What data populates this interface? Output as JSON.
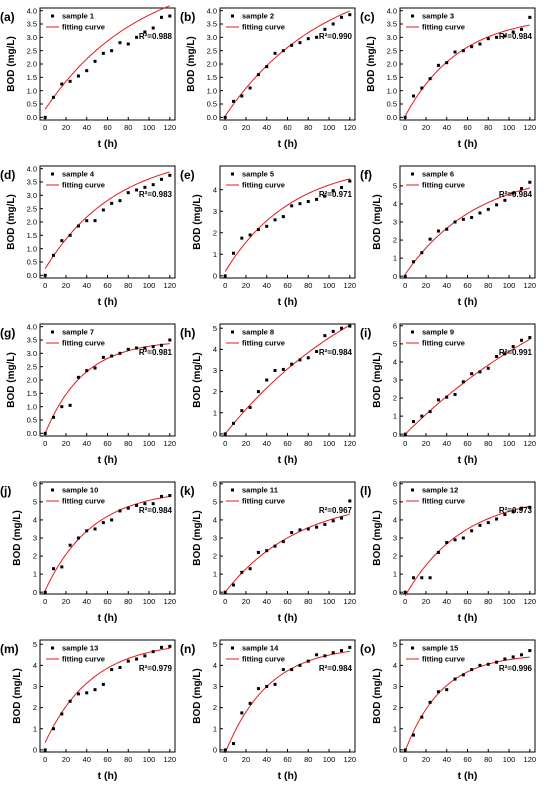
{
  "figure": {
    "xlabel": "t (h)",
    "ylabel": "BOD (mg/L)",
    "legend_points": "sample",
    "legend_curve": "fitting curve",
    "colors": {
      "points": "#000000",
      "curve": "#e31a1c",
      "axis": "#000000"
    }
  },
  "chart_data": [
    {
      "type": "scatter",
      "panel": "(a)",
      "series_name": "sample 1",
      "r2": "R²=0.988",
      "x": [
        0,
        8,
        16,
        24,
        32,
        40,
        48,
        56,
        64,
        72,
        80,
        88,
        96,
        104,
        112,
        120
      ],
      "y": [
        0.0,
        0.75,
        1.25,
        1.35,
        1.55,
        1.75,
        2.1,
        2.4,
        2.5,
        2.8,
        2.75,
        3.0,
        3.2,
        3.35,
        3.75,
        3.8
      ],
      "fit": {
        "model": "a*(1-exp(-k*t))+c",
        "a": 5.3,
        "k": 0.011,
        "c": 0.3
      },
      "xticks": [
        0,
        20,
        40,
        60,
        80,
        100,
        120
      ],
      "yticks": [
        0.0,
        0.5,
        1.0,
        1.5,
        2.0,
        2.5,
        3.0,
        3.5,
        4.0
      ],
      "ylim": [
        -0.1,
        4.1
      ],
      "xlim": [
        -5,
        125
      ]
    },
    {
      "type": "scatter",
      "panel": "(b)",
      "series_name": "sample 2",
      "r2": "R²=0.990",
      "x": [
        0,
        8,
        16,
        24,
        32,
        40,
        48,
        56,
        64,
        72,
        80,
        88,
        96,
        104,
        112,
        120
      ],
      "y": [
        0.0,
        0.6,
        0.8,
        1.1,
        1.6,
        1.9,
        2.4,
        2.5,
        2.7,
        2.8,
        2.95,
        3.0,
        3.3,
        3.5,
        3.75,
        3.85
      ],
      "fit": {
        "model": "a*(1-exp(-k*t))+c",
        "a": 5.5,
        "k": 0.0105,
        "c": 0.05
      },
      "xticks": [
        0,
        20,
        40,
        60,
        80,
        100,
        120
      ],
      "yticks": [
        0.0,
        0.5,
        1.0,
        1.5,
        2.0,
        2.5,
        3.0,
        3.5,
        4.0
      ],
      "ylim": [
        -0.1,
        4.1
      ],
      "xlim": [
        -5,
        125
      ]
    },
    {
      "type": "scatter",
      "panel": "(c)",
      "series_name": "sample 3",
      "r2": "R²=0.984",
      "x": [
        0,
        8,
        16,
        24,
        32,
        40,
        48,
        56,
        64,
        72,
        80,
        88,
        96,
        104,
        112,
        120
      ],
      "y": [
        0.0,
        0.8,
        1.1,
        1.45,
        1.95,
        2.05,
        2.45,
        2.5,
        2.65,
        2.75,
        2.95,
        3.0,
        3.05,
        3.2,
        3.3,
        3.75
      ],
      "fit": {
        "model": "a*(1-exp(-k*t))+c",
        "a": 3.8,
        "k": 0.019,
        "c": 0.05
      },
      "xticks": [
        0,
        20,
        40,
        60,
        80,
        100,
        120
      ],
      "yticks": [
        0.0,
        0.5,
        1.0,
        1.5,
        2.0,
        2.5,
        3.0,
        3.5,
        4.0
      ],
      "ylim": [
        -0.1,
        4.1
      ],
      "xlim": [
        -5,
        125
      ]
    },
    {
      "type": "scatter",
      "panel": "(d)",
      "series_name": "sample 4",
      "r2": "R²=0.983",
      "x": [
        0,
        8,
        16,
        24,
        32,
        40,
        48,
        56,
        64,
        72,
        80,
        88,
        96,
        104,
        112,
        120
      ],
      "y": [
        0.0,
        0.75,
        1.3,
        1.5,
        1.85,
        2.05,
        2.05,
        2.45,
        2.7,
        2.8,
        3.1,
        3.2,
        3.3,
        3.4,
        3.6,
        3.75
      ],
      "fit": {
        "model": "a*(1-exp(-k*t))+c",
        "a": 4.4,
        "k": 0.0145,
        "c": 0.25
      },
      "xticks": [
        0,
        20,
        40,
        60,
        80,
        100,
        120
      ],
      "yticks": [
        0.0,
        0.5,
        1.0,
        1.5,
        2.0,
        2.5,
        3.0,
        3.5,
        4.0
      ],
      "ylim": [
        -0.1,
        4.1
      ],
      "xlim": [
        -5,
        125
      ]
    },
    {
      "type": "scatter",
      "panel": "(e)",
      "series_name": "sample 5",
      "r2": "R²=0.971",
      "x": [
        0,
        8,
        16,
        24,
        32,
        40,
        48,
        56,
        64,
        72,
        80,
        88,
        96,
        104,
        112,
        120
      ],
      "y": [
        0.0,
        1.05,
        1.75,
        1.9,
        2.15,
        2.3,
        2.6,
        2.75,
        3.25,
        3.35,
        3.45,
        3.55,
        3.7,
        3.95,
        4.1,
        4.4
      ],
      "fit": {
        "model": "a*(1-exp(-k*t))+c",
        "a": 5.1,
        "k": 0.0155,
        "c": 0.2
      },
      "xticks": [
        0,
        20,
        40,
        60,
        80,
        100,
        120
      ],
      "yticks": [
        0,
        1,
        2,
        3,
        4
      ],
      "ylim": [
        -0.1,
        5.1
      ],
      "xlim": [
        -5,
        125
      ]
    },
    {
      "type": "scatter",
      "panel": "(f)",
      "series_name": "sample 6",
      "r2": "R²=0.984",
      "x": [
        0,
        8,
        16,
        24,
        32,
        40,
        48,
        56,
        64,
        72,
        80,
        88,
        96,
        104,
        112,
        120
      ],
      "y": [
        0.0,
        0.8,
        1.3,
        2.05,
        2.5,
        2.6,
        3.0,
        3.15,
        3.25,
        3.5,
        3.7,
        3.95,
        4.2,
        4.6,
        4.85,
        5.2
      ],
      "fit": {
        "model": "a*(1-exp(-k*t))+c",
        "a": 5.8,
        "k": 0.0145,
        "c": 0.1
      },
      "xticks": [
        0,
        20,
        40,
        60,
        80,
        100,
        120
      ],
      "yticks": [
        0,
        1,
        2,
        3,
        4,
        5
      ],
      "ylim": [
        -0.1,
        6.1
      ],
      "xlim": [
        -5,
        125
      ]
    },
    {
      "type": "scatter",
      "panel": "(g)",
      "series_name": "sample 7",
      "r2": "R²=0.981",
      "x": [
        0,
        8,
        16,
        24,
        32,
        40,
        48,
        56,
        64,
        72,
        80,
        88,
        96,
        104,
        112,
        120
      ],
      "y": [
        0.0,
        0.6,
        1.0,
        1.05,
        2.1,
        2.35,
        2.45,
        2.85,
        2.9,
        3.0,
        3.15,
        3.2,
        3.2,
        3.25,
        3.3,
        3.5
      ],
      "fit": {
        "model": "a*(1-exp(-k*t))+c",
        "a": 3.5,
        "k": 0.027,
        "c": 0.0
      },
      "xticks": [
        0,
        20,
        40,
        60,
        80,
        100,
        120
      ],
      "yticks": [
        0.0,
        0.5,
        1.0,
        1.5,
        2.0,
        2.5,
        3.0,
        3.5,
        4.0
      ],
      "ylim": [
        -0.1,
        4.1
      ],
      "xlim": [
        -5,
        125
      ]
    },
    {
      "type": "scatter",
      "panel": "(h)",
      "series_name": "sample 8",
      "r2": "R²=0.984",
      "x": [
        0,
        8,
        16,
        24,
        32,
        40,
        48,
        56,
        64,
        72,
        80,
        88,
        96,
        104,
        112,
        120
      ],
      "y": [
        0.0,
        0.5,
        1.1,
        1.25,
        2.0,
        2.55,
        3.0,
        3.05,
        3.3,
        3.5,
        3.6,
        3.9,
        4.65,
        4.85,
        5.0,
        5.1
      ],
      "fit": {
        "model": "a*(1-exp(-k*t))+c",
        "a": 9.5,
        "k": 0.0065,
        "c": 0.0
      },
      "xticks": [
        0,
        20,
        40,
        60,
        80,
        100,
        120
      ],
      "yticks": [
        0,
        1,
        2,
        3,
        4,
        5
      ],
      "ylim": [
        -0.1,
        5.2
      ],
      "xlim": [
        -5,
        125
      ]
    },
    {
      "type": "scatter",
      "panel": "(i)",
      "series_name": "sample 9",
      "r2": "R²=0.991",
      "x": [
        0,
        8,
        16,
        24,
        32,
        40,
        48,
        56,
        64,
        72,
        80,
        88,
        96,
        104,
        112,
        120
      ],
      "y": [
        0.0,
        0.7,
        1.0,
        1.25,
        1.9,
        2.05,
        2.2,
        2.9,
        3.35,
        3.45,
        3.65,
        4.3,
        4.45,
        4.85,
        5.2,
        5.35
      ],
      "fit": {
        "model": "a*(1-exp(-k*t))+c",
        "a": 12.0,
        "k": 0.0048,
        "c": 0.0
      },
      "xticks": [
        0,
        20,
        40,
        60,
        80,
        100,
        120
      ],
      "yticks": [
        0,
        1,
        2,
        3,
        4,
        5,
        6
      ],
      "ylim": [
        -0.1,
        6.1
      ],
      "xlim": [
        -5,
        125
      ]
    },
    {
      "type": "scatter",
      "panel": "(j)",
      "series_name": "sample 10",
      "r2": "R²=0.984",
      "x": [
        0,
        8,
        16,
        24,
        32,
        40,
        48,
        56,
        64,
        72,
        80,
        88,
        96,
        104,
        112,
        120
      ],
      "y": [
        0.0,
        1.3,
        1.4,
        2.6,
        3.0,
        3.4,
        3.5,
        3.85,
        4.0,
        4.5,
        4.65,
        4.8,
        4.9,
        4.9,
        5.3,
        5.35
      ],
      "fit": {
        "model": "a*(1-exp(-k*t))+c",
        "a": 5.6,
        "k": 0.022,
        "c": 0.1
      },
      "xticks": [
        0,
        20,
        40,
        60,
        80,
        100,
        120
      ],
      "yticks": [
        0,
        1,
        2,
        3,
        4,
        5,
        6
      ],
      "ylim": [
        -0.1,
        6.1
      ],
      "xlim": [
        -5,
        125
      ]
    },
    {
      "type": "scatter",
      "panel": "(k)",
      "series_name": "sample 11",
      "r2": "R²=0.967",
      "x": [
        0,
        8,
        16,
        24,
        32,
        40,
        48,
        56,
        64,
        72,
        80,
        88,
        96,
        104,
        112,
        120
      ],
      "y": [
        0.0,
        0.4,
        1.1,
        1.3,
        2.2,
        2.3,
        2.55,
        2.8,
        3.3,
        3.45,
        3.5,
        3.6,
        3.75,
        3.95,
        4.1,
        5.05
      ],
      "fit": {
        "model": "a*(1-exp(-k*t))+c",
        "a": 5.3,
        "k": 0.014,
        "c": 0.0
      },
      "xticks": [
        0,
        20,
        40,
        60,
        80,
        100,
        120
      ],
      "yticks": [
        0,
        1,
        2,
        3,
        4,
        5,
        6
      ],
      "ylim": [
        -0.1,
        6.1
      ],
      "xlim": [
        -5,
        125
      ]
    },
    {
      "type": "scatter",
      "panel": "(l)",
      "series_name": "sample 12",
      "r2": "R²=0.973",
      "x": [
        0,
        8,
        16,
        24,
        32,
        40,
        48,
        56,
        64,
        72,
        80,
        88,
        96,
        104,
        112,
        120
      ],
      "y": [
        0.0,
        0.8,
        0.8,
        0.8,
        2.2,
        2.75,
        2.9,
        3.0,
        3.4,
        3.7,
        3.85,
        4.05,
        4.3,
        4.45,
        4.65,
        4.7
      ],
      "fit": {
        "model": "a*(1-exp(-k*t))+c",
        "a": 5.6,
        "k": 0.018,
        "c": -0.2
      },
      "xticks": [
        0,
        20,
        40,
        60,
        80,
        100,
        120
      ],
      "yticks": [
        0,
        1,
        2,
        3,
        4,
        5,
        6
      ],
      "ylim": [
        -0.1,
        6.1
      ],
      "xlim": [
        -5,
        125
      ]
    },
    {
      "type": "scatter",
      "panel": "(m)",
      "series_name": "sample 13",
      "r2": "R²=0.979",
      "x": [
        0,
        8,
        16,
        24,
        32,
        40,
        48,
        56,
        64,
        72,
        80,
        88,
        96,
        104,
        112,
        120
      ],
      "y": [
        0.0,
        1.0,
        1.7,
        2.3,
        2.65,
        2.7,
        2.85,
        3.1,
        3.8,
        3.9,
        4.2,
        4.3,
        4.45,
        4.65,
        4.85,
        4.9
      ],
      "fit": {
        "model": "a*(1-exp(-k*t))+c",
        "a": 4.8,
        "k": 0.022,
        "c": 0.35
      },
      "xticks": [
        0,
        20,
        40,
        60,
        80,
        100,
        120
      ],
      "yticks": [
        0,
        1,
        2,
        3,
        4,
        5
      ],
      "ylim": [
        -0.1,
        5.2
      ],
      "xlim": [
        -5,
        125
      ]
    },
    {
      "type": "scatter",
      "panel": "(n)",
      "series_name": "sample 14",
      "r2": "R²=0.984",
      "x": [
        0,
        8,
        16,
        24,
        32,
        40,
        48,
        56,
        64,
        72,
        80,
        88,
        96,
        104,
        112,
        120
      ],
      "y": [
        0.0,
        0.3,
        1.75,
        2.2,
        2.9,
        3.0,
        3.1,
        3.8,
        3.8,
        4.0,
        4.2,
        4.5,
        4.45,
        4.6,
        4.7,
        4.85
      ],
      "fit": {
        "model": "a*(1-exp(-k*t))+c",
        "a": 5.1,
        "k": 0.024,
        "c": -0.15
      },
      "xticks": [
        0,
        20,
        40,
        60,
        80,
        100,
        120
      ],
      "yticks": [
        0,
        1,
        2,
        3,
        4,
        5
      ],
      "ylim": [
        -0.1,
        5.2
      ],
      "xlim": [
        -5,
        125
      ]
    },
    {
      "type": "scatter",
      "panel": "(o)",
      "series_name": "sample 15",
      "r2": "R²=0.996",
      "x": [
        0,
        8,
        16,
        24,
        32,
        40,
        48,
        56,
        64,
        72,
        80,
        88,
        96,
        104,
        112,
        120
      ],
      "y": [
        0.0,
        0.7,
        1.55,
        2.25,
        2.75,
        2.85,
        3.35,
        3.55,
        3.8,
        4.0,
        4.05,
        4.15,
        4.3,
        4.4,
        4.5,
        4.7
      ],
      "fit": {
        "model": "a*(1-exp(-k*t))+c",
        "a": 4.6,
        "k": 0.028,
        "c": -0.05
      },
      "xticks": [
        0,
        20,
        40,
        60,
        80,
        100,
        120
      ],
      "yticks": [
        0,
        1,
        2,
        3,
        4,
        5
      ],
      "ylim": [
        -0.1,
        5.2
      ],
      "xlim": [
        -5,
        125
      ]
    }
  ]
}
